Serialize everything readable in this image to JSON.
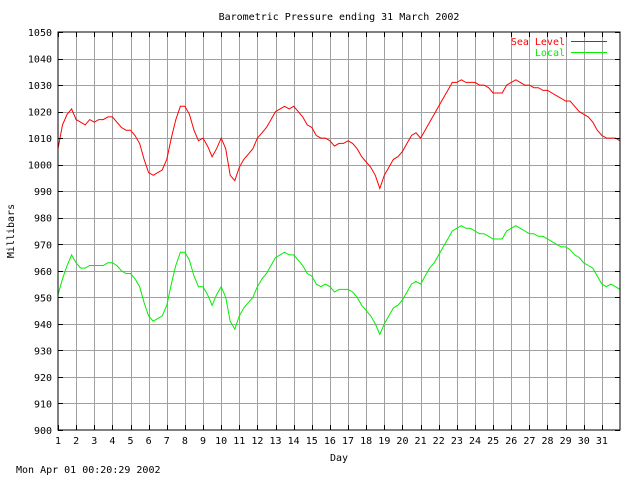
{
  "chart_data": {
    "type": "line",
    "title": "Barometric Pressure ending 31 March 2002",
    "xlabel": "Day",
    "ylabel": "Millibars",
    "x_ticks": [
      "1",
      "2",
      "3",
      "4",
      "5",
      "6",
      "7",
      "8",
      "9",
      "10",
      "11",
      "12",
      "13",
      "14",
      "15",
      "16",
      "17",
      "18",
      "19",
      "20",
      "21",
      "22",
      "23",
      "24",
      "25",
      "26",
      "27",
      "28",
      "29",
      "30",
      "31"
    ],
    "y_ticks": [
      900,
      910,
      920,
      930,
      940,
      950,
      960,
      970,
      980,
      990,
      1000,
      1010,
      1020,
      1030,
      1040,
      1050
    ],
    "xlim": [
      1,
      32
    ],
    "ylim": [
      900,
      1050
    ],
    "grid": true,
    "legend_position": "top-right",
    "series": [
      {
        "name": "Sea Level",
        "color": "#ff0000",
        "points": [
          [
            1.0,
            1006
          ],
          [
            1.25,
            1015
          ],
          [
            1.5,
            1019
          ],
          [
            1.75,
            1021
          ],
          [
            2.0,
            1017
          ],
          [
            2.25,
            1016
          ],
          [
            2.5,
            1015
          ],
          [
            2.75,
            1017
          ],
          [
            3.0,
            1016
          ],
          [
            3.25,
            1017
          ],
          [
            3.5,
            1017
          ],
          [
            3.75,
            1018
          ],
          [
            4.0,
            1018
          ],
          [
            4.25,
            1016
          ],
          [
            4.5,
            1014
          ],
          [
            4.75,
            1013
          ],
          [
            5.0,
            1013
          ],
          [
            5.25,
            1011
          ],
          [
            5.5,
            1008
          ],
          [
            5.75,
            1002
          ],
          [
            6.0,
            997
          ],
          [
            6.25,
            996
          ],
          [
            6.5,
            997
          ],
          [
            6.75,
            998
          ],
          [
            7.0,
            1002
          ],
          [
            7.25,
            1010
          ],
          [
            7.5,
            1017
          ],
          [
            7.75,
            1022
          ],
          [
            8.0,
            1022
          ],
          [
            8.25,
            1019
          ],
          [
            8.5,
            1013
          ],
          [
            8.75,
            1009
          ],
          [
            9.0,
            1010
          ],
          [
            9.25,
            1007
          ],
          [
            9.5,
            1003
          ],
          [
            9.75,
            1006
          ],
          [
            10.0,
            1010
          ],
          [
            10.25,
            1006
          ],
          [
            10.5,
            996
          ],
          [
            10.75,
            994
          ],
          [
            11.0,
            999
          ],
          [
            11.25,
            1002
          ],
          [
            11.5,
            1004
          ],
          [
            11.75,
            1006
          ],
          [
            12.0,
            1010
          ],
          [
            12.25,
            1012
          ],
          [
            12.5,
            1014
          ],
          [
            12.75,
            1017
          ],
          [
            13.0,
            1020
          ],
          [
            13.25,
            1021
          ],
          [
            13.5,
            1022
          ],
          [
            13.75,
            1021
          ],
          [
            14.0,
            1022
          ],
          [
            14.25,
            1020
          ],
          [
            14.5,
            1018
          ],
          [
            14.75,
            1015
          ],
          [
            15.0,
            1014
          ],
          [
            15.25,
            1011
          ],
          [
            15.5,
            1010
          ],
          [
            15.75,
            1010
          ],
          [
            16.0,
            1009
          ],
          [
            16.25,
            1007
          ],
          [
            16.5,
            1008
          ],
          [
            16.75,
            1008
          ],
          [
            17.0,
            1009
          ],
          [
            17.25,
            1008
          ],
          [
            17.5,
            1006
          ],
          [
            17.75,
            1003
          ],
          [
            18.0,
            1001
          ],
          [
            18.25,
            999
          ],
          [
            18.5,
            996
          ],
          [
            18.75,
            991
          ],
          [
            19.0,
            996
          ],
          [
            19.25,
            999
          ],
          [
            19.5,
            1002
          ],
          [
            19.75,
            1003
          ],
          [
            20.0,
            1005
          ],
          [
            20.25,
            1008
          ],
          [
            20.5,
            1011
          ],
          [
            20.75,
            1012
          ],
          [
            21.0,
            1010
          ],
          [
            21.25,
            1013
          ],
          [
            21.5,
            1016
          ],
          [
            21.75,
            1019
          ],
          [
            22.0,
            1022
          ],
          [
            22.25,
            1025
          ],
          [
            22.5,
            1028
          ],
          [
            22.75,
            1031
          ],
          [
            23.0,
            1031
          ],
          [
            23.25,
            1032
          ],
          [
            23.5,
            1031
          ],
          [
            23.75,
            1031
          ],
          [
            24.0,
            1031
          ],
          [
            24.25,
            1030
          ],
          [
            24.5,
            1030
          ],
          [
            24.75,
            1029
          ],
          [
            25.0,
            1027
          ],
          [
            25.25,
            1027
          ],
          [
            25.5,
            1027
          ],
          [
            25.75,
            1030
          ],
          [
            26.0,
            1031
          ],
          [
            26.25,
            1032
          ],
          [
            26.5,
            1031
          ],
          [
            26.75,
            1030
          ],
          [
            27.0,
            1030
          ],
          [
            27.25,
            1029
          ],
          [
            27.5,
            1029
          ],
          [
            27.75,
            1028
          ],
          [
            28.0,
            1028
          ],
          [
            28.25,
            1027
          ],
          [
            28.5,
            1026
          ],
          [
            28.75,
            1025
          ],
          [
            29.0,
            1024
          ],
          [
            29.25,
            1024
          ],
          [
            29.5,
            1022
          ],
          [
            29.75,
            1020
          ],
          [
            30.0,
            1019
          ],
          [
            30.25,
            1018
          ],
          [
            30.5,
            1016
          ],
          [
            30.75,
            1013
          ],
          [
            31.0,
            1011
          ],
          [
            31.25,
            1010
          ],
          [
            31.5,
            1010
          ],
          [
            31.75,
            1010
          ],
          [
            32.0,
            1009
          ]
        ]
      },
      {
        "name": "Local",
        "color": "#00ee00",
        "points": [
          [
            1.0,
            951
          ],
          [
            1.25,
            957
          ],
          [
            1.5,
            962
          ],
          [
            1.75,
            966
          ],
          [
            2.0,
            963
          ],
          [
            2.25,
            961
          ],
          [
            2.5,
            961
          ],
          [
            2.75,
            962
          ],
          [
            3.0,
            962
          ],
          [
            3.25,
            962
          ],
          [
            3.5,
            962
          ],
          [
            3.75,
            963
          ],
          [
            4.0,
            963
          ],
          [
            4.25,
            962
          ],
          [
            4.5,
            960
          ],
          [
            4.75,
            959
          ],
          [
            5.0,
            959
          ],
          [
            5.25,
            957
          ],
          [
            5.5,
            954
          ],
          [
            5.75,
            948
          ],
          [
            6.0,
            943
          ],
          [
            6.25,
            941
          ],
          [
            6.5,
            942
          ],
          [
            6.75,
            943
          ],
          [
            7.0,
            947
          ],
          [
            7.25,
            955
          ],
          [
            7.5,
            962
          ],
          [
            7.75,
            967
          ],
          [
            8.0,
            967
          ],
          [
            8.25,
            964
          ],
          [
            8.5,
            958
          ],
          [
            8.75,
            954
          ],
          [
            9.0,
            954
          ],
          [
            9.25,
            951
          ],
          [
            9.5,
            947
          ],
          [
            9.75,
            951
          ],
          [
            10.0,
            954
          ],
          [
            10.25,
            950
          ],
          [
            10.5,
            941
          ],
          [
            10.75,
            938
          ],
          [
            11.0,
            943
          ],
          [
            11.25,
            946
          ],
          [
            11.5,
            948
          ],
          [
            11.75,
            950
          ],
          [
            12.0,
            954
          ],
          [
            12.25,
            957
          ],
          [
            12.5,
            959
          ],
          [
            12.75,
            962
          ],
          [
            13.0,
            965
          ],
          [
            13.25,
            966
          ],
          [
            13.5,
            967
          ],
          [
            13.75,
            966
          ],
          [
            14.0,
            966
          ],
          [
            14.25,
            964
          ],
          [
            14.5,
            962
          ],
          [
            14.75,
            959
          ],
          [
            15.0,
            958
          ],
          [
            15.25,
            955
          ],
          [
            15.5,
            954
          ],
          [
            15.75,
            955
          ],
          [
            16.0,
            954
          ],
          [
            16.25,
            952
          ],
          [
            16.5,
            953
          ],
          [
            16.75,
            953
          ],
          [
            17.0,
            953
          ],
          [
            17.25,
            952
          ],
          [
            17.5,
            950
          ],
          [
            17.75,
            947
          ],
          [
            18.0,
            945
          ],
          [
            18.25,
            943
          ],
          [
            18.5,
            940
          ],
          [
            18.75,
            936
          ],
          [
            19.0,
            940
          ],
          [
            19.25,
            943
          ],
          [
            19.5,
            946
          ],
          [
            19.75,
            947
          ],
          [
            20.0,
            949
          ],
          [
            20.25,
            952
          ],
          [
            20.5,
            955
          ],
          [
            20.75,
            956
          ],
          [
            21.0,
            955
          ],
          [
            21.25,
            958
          ],
          [
            21.5,
            961
          ],
          [
            21.75,
            963
          ],
          [
            22.0,
            966
          ],
          [
            22.25,
            969
          ],
          [
            22.5,
            972
          ],
          [
            22.75,
            975
          ],
          [
            23.0,
            976
          ],
          [
            23.25,
            977
          ],
          [
            23.5,
            976
          ],
          [
            23.75,
            976
          ],
          [
            24.0,
            975
          ],
          [
            24.25,
            974
          ],
          [
            24.5,
            974
          ],
          [
            24.75,
            973
          ],
          [
            25.0,
            972
          ],
          [
            25.25,
            972
          ],
          [
            25.5,
            972
          ],
          [
            25.75,
            975
          ],
          [
            26.0,
            976
          ],
          [
            26.25,
            977
          ],
          [
            26.5,
            976
          ],
          [
            26.75,
            975
          ],
          [
            27.0,
            974
          ],
          [
            27.25,
            974
          ],
          [
            27.5,
            973
          ],
          [
            27.75,
            973
          ],
          [
            28.0,
            972
          ],
          [
            28.25,
            971
          ],
          [
            28.5,
            970
          ],
          [
            28.75,
            969
          ],
          [
            29.0,
            969
          ],
          [
            29.25,
            968
          ],
          [
            29.5,
            966
          ],
          [
            29.75,
            965
          ],
          [
            30.0,
            963
          ],
          [
            30.25,
            962
          ],
          [
            30.5,
            961
          ],
          [
            30.75,
            958
          ],
          [
            31.0,
            955
          ],
          [
            31.25,
            954
          ],
          [
            31.5,
            955
          ],
          [
            31.75,
            954
          ],
          [
            32.0,
            953
          ]
        ]
      }
    ]
  },
  "footer": {
    "timestamp": "Mon Apr 01 00:20:29 2002"
  }
}
